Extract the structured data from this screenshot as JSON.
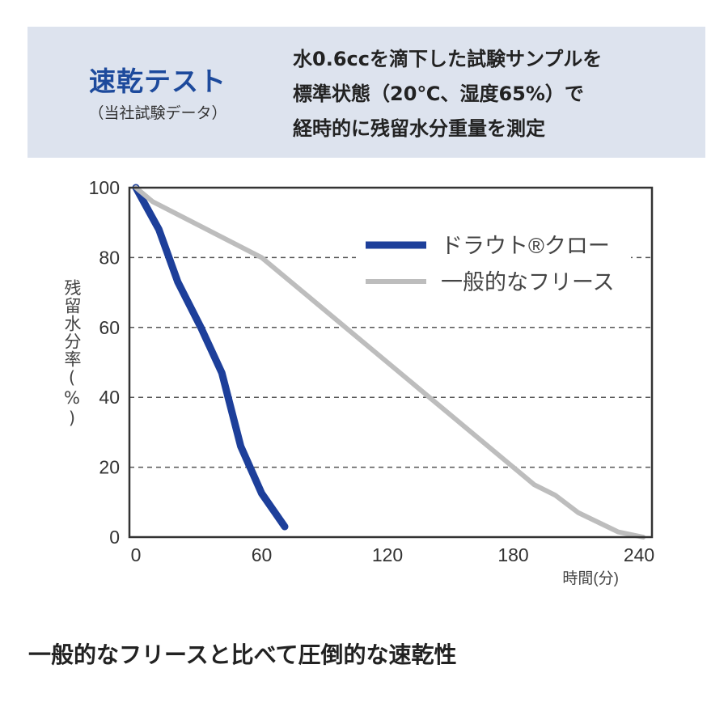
{
  "header": {
    "title": "速乾テスト",
    "subtitle": "（当社試験データ）",
    "description_lines": [
      "水0.6ccを滴下した試験サンプルを",
      "標準状態（20℃、湿度65%）で",
      "経時的に残留水分重量を測定"
    ]
  },
  "footer_text": "一般的なフリースと比べて圧倒的な速乾性",
  "chart_data": {
    "type": "line",
    "title": "",
    "xlabel": "時間(分)",
    "ylabel": "残留水分率(%)",
    "xlim": [
      0,
      240
    ],
    "ylim": [
      0,
      100
    ],
    "xticks": [
      0,
      60,
      120,
      180,
      240
    ],
    "yticks": [
      0,
      20,
      40,
      60,
      80,
      100
    ],
    "grid": "horizontal dashed",
    "legend_position": "top-right",
    "series": [
      {
        "name": "ドラウト®クロー",
        "color": "#1d3f9a",
        "x": [
          0,
          11,
          20,
          31,
          41,
          50,
          60,
          71
        ],
        "y": [
          100,
          88,
          73,
          60,
          47,
          26,
          12.5,
          3
        ]
      },
      {
        "name": "一般的なフリース",
        "color": "#bdbdbd",
        "x": [
          0,
          8,
          60,
          100,
          120,
          180,
          190,
          200,
          211,
          230,
          242
        ],
        "y": [
          100,
          96,
          80,
          60,
          50,
          20,
          15,
          12,
          7,
          1.5,
          0
        ]
      }
    ]
  }
}
